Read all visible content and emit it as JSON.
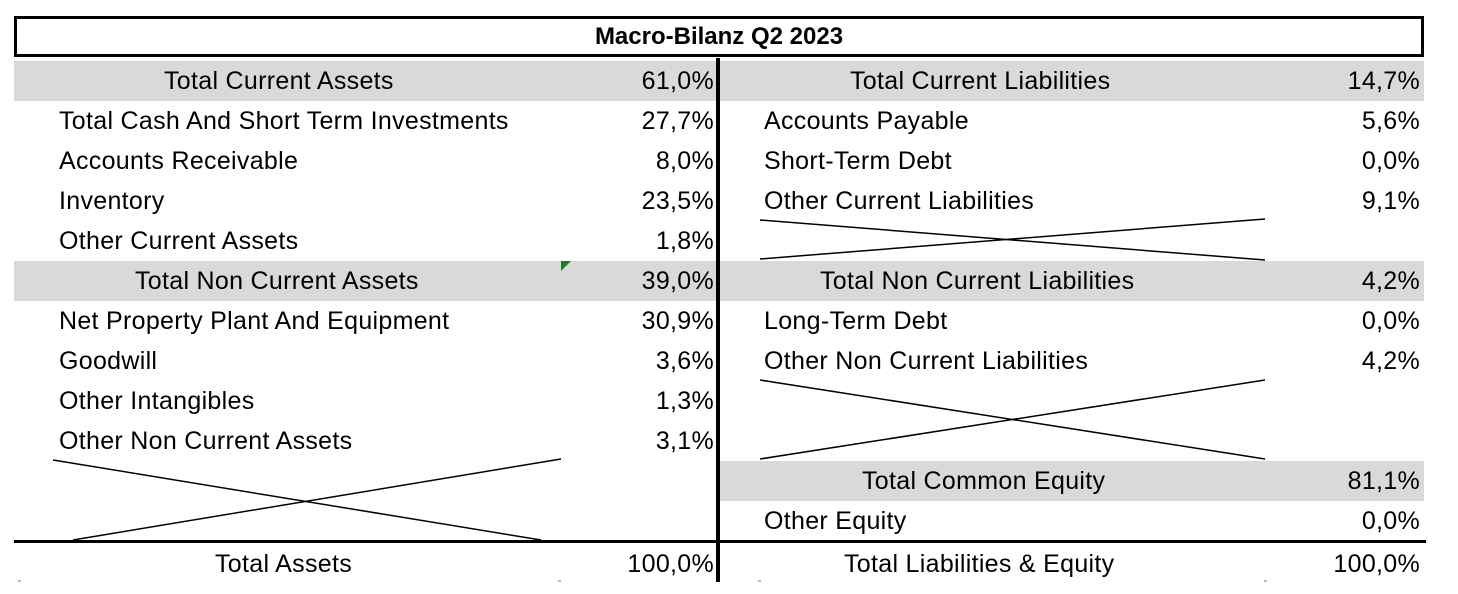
{
  "title": "Macro-Bilanz Q2 2023",
  "assets": {
    "current_header": {
      "label": "Total Current Assets",
      "value": "61,0%"
    },
    "current_items": [
      {
        "label": "Total Cash And Short Term Investments",
        "value": "27,7%"
      },
      {
        "label": "Accounts Receivable",
        "value": "8,0%"
      },
      {
        "label": "Inventory",
        "value": "23,5%"
      },
      {
        "label": "Other Current Assets",
        "value": "1,8%"
      }
    ],
    "noncurrent_header": {
      "label": "Total Non Current Assets",
      "value": "39,0%"
    },
    "noncurrent_items": [
      {
        "label": "Net Property Plant And Equipment",
        "value": "30,9%"
      },
      {
        "label": "Goodwill",
        "value": "3,6%"
      },
      {
        "label": "Other Intangibles",
        "value": "1,3%"
      },
      {
        "label": "Other Non Current Assets",
        "value": "3,1%"
      }
    ],
    "total": {
      "label": "Total Assets",
      "value": "100,0%"
    }
  },
  "liabilities": {
    "current_header": {
      "label": "Total Current Liabilities",
      "value": "14,7%"
    },
    "current_items": [
      {
        "label": "Accounts Payable",
        "value": "5,6%"
      },
      {
        "label": "Short-Term Debt",
        "value": "0,0%"
      },
      {
        "label": "Other Current Liabilities",
        "value": "9,1%"
      }
    ],
    "noncurrent_header": {
      "label": "Total Non Current Liabilities",
      "value": "4,2%"
    },
    "noncurrent_items": [
      {
        "label": "Long-Term Debt",
        "value": "0,0%"
      },
      {
        "label": "Other Non Current Liabilities",
        "value": "4,2%"
      }
    ],
    "equity_header": {
      "label": "Total Common Equity",
      "value": "81,1%"
    },
    "equity_items": [
      {
        "label": "Other Equity",
        "value": "0,0%"
      }
    ],
    "total": {
      "label": "Total Liabilities & Equity",
      "value": "100,0%"
    }
  },
  "colors": {
    "header_fill": "#d9d9d9",
    "comment_marker": "#1f7f1f"
  }
}
